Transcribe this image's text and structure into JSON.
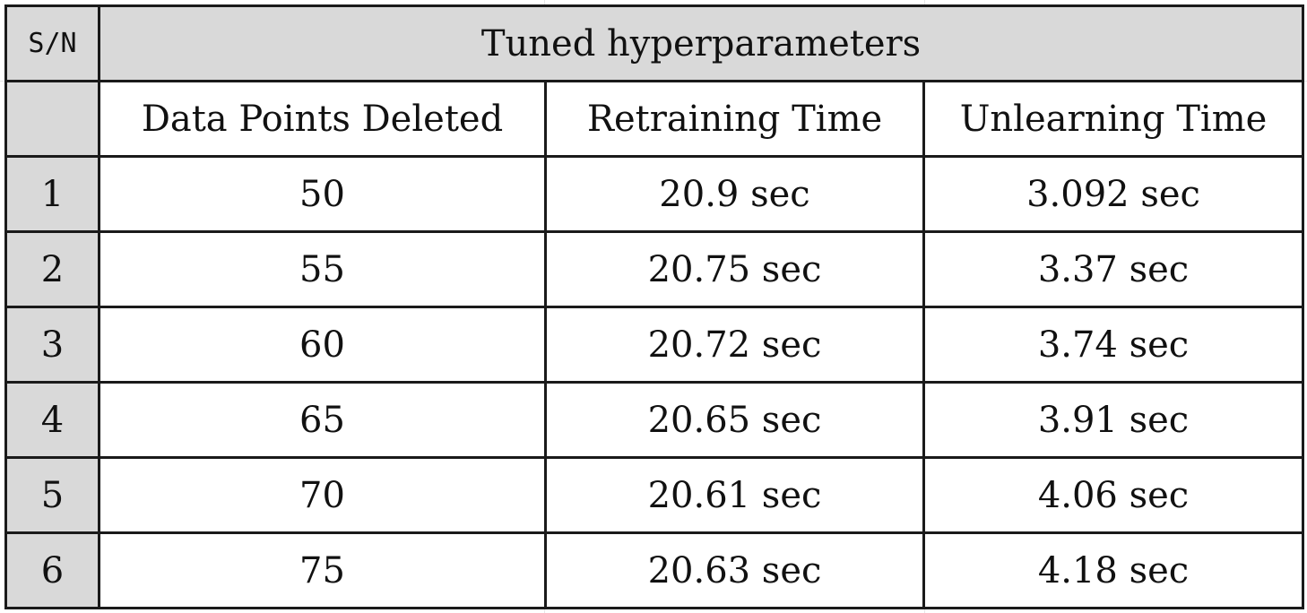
{
  "table": {
    "sn_header": "S/N",
    "title": "Tuned hyperparameters",
    "columns": [
      "Data Points Deleted",
      "Retraining Time",
      "Unlearning Time"
    ],
    "rows": [
      {
        "sn": "1",
        "data_points_deleted": "50",
        "retraining_time": "20.9 sec",
        "unlearning_time": "3.092 sec"
      },
      {
        "sn": "2",
        "data_points_deleted": "55",
        "retraining_time": "20.75 sec",
        "unlearning_time": "3.37 sec"
      },
      {
        "sn": "3",
        "data_points_deleted": "60",
        "retraining_time": "20.72 sec",
        "unlearning_time": "3.74 sec"
      },
      {
        "sn": "4",
        "data_points_deleted": "65",
        "retraining_time": "20.65 sec",
        "unlearning_time": "3.91 sec"
      },
      {
        "sn": "5",
        "data_points_deleted": "70",
        "retraining_time": "20.61 sec",
        "unlearning_time": "4.06 sec"
      },
      {
        "sn": "6",
        "data_points_deleted": "75",
        "retraining_time": "20.63 sec",
        "unlearning_time": "4.18 sec"
      }
    ]
  },
  "colors": {
    "header_fill": "#d9d9d9",
    "border": "#1a1a1a",
    "background": "#ffffff"
  }
}
